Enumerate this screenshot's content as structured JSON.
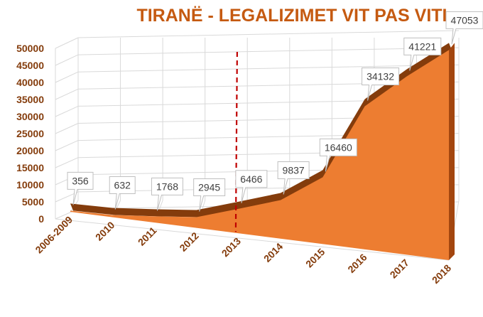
{
  "chart_data": {
    "type": "area",
    "title": "TIRANË - LEGALIZIMET VIT PAS VITI",
    "categories": [
      "2006-2009",
      "2010",
      "2011",
      "2012",
      "2013",
      "2014",
      "2015",
      "2016",
      "2017",
      "2018"
    ],
    "values": [
      356,
      632,
      1768,
      2945,
      6466,
      9837,
      16460,
      34132,
      41221,
      47053
    ],
    "data_labels": [
      "356",
      "632",
      "1768",
      "2945",
      "6466",
      "9837",
      "16460",
      "34132",
      "41221",
      "47053"
    ],
    "ylim": [
      0,
      50000
    ],
    "yticks": [
      "0",
      "5000",
      "10000",
      "15000",
      "20000",
      "25000",
      "30000",
      "35000",
      "40000",
      "45000",
      "50000"
    ],
    "xlabel": "",
    "ylabel": "",
    "grid": true,
    "view": "3d",
    "reference_line": {
      "category": "2013",
      "style": "dashed",
      "color": "#c00000"
    },
    "colors": {
      "area": "#ed7d31",
      "area_edge": "#843c0c",
      "title": "#c55a11",
      "ticks": "#843c0c",
      "label_text": "#404040",
      "grid": "#d9d9d9"
    }
  }
}
